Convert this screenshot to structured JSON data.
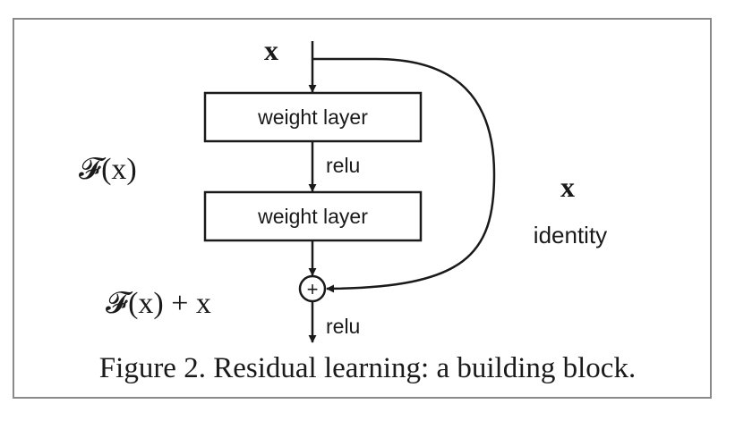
{
  "input_label": "x",
  "layers": [
    "weight layer",
    "weight layer"
  ],
  "relu_label_1": "relu",
  "relu_label_2": "relu",
  "residual_fn_label": "𝓕(x)",
  "sum_label": "𝓕(x) + x",
  "skip_label": "x",
  "skip_sublabel": "identity",
  "add_symbol": "+",
  "caption": "Figure 2. Residual learning: a building block.",
  "colors": {
    "line": "#1a1a1a",
    "frame": "#8a8a8a",
    "background": "#ffffff"
  }
}
